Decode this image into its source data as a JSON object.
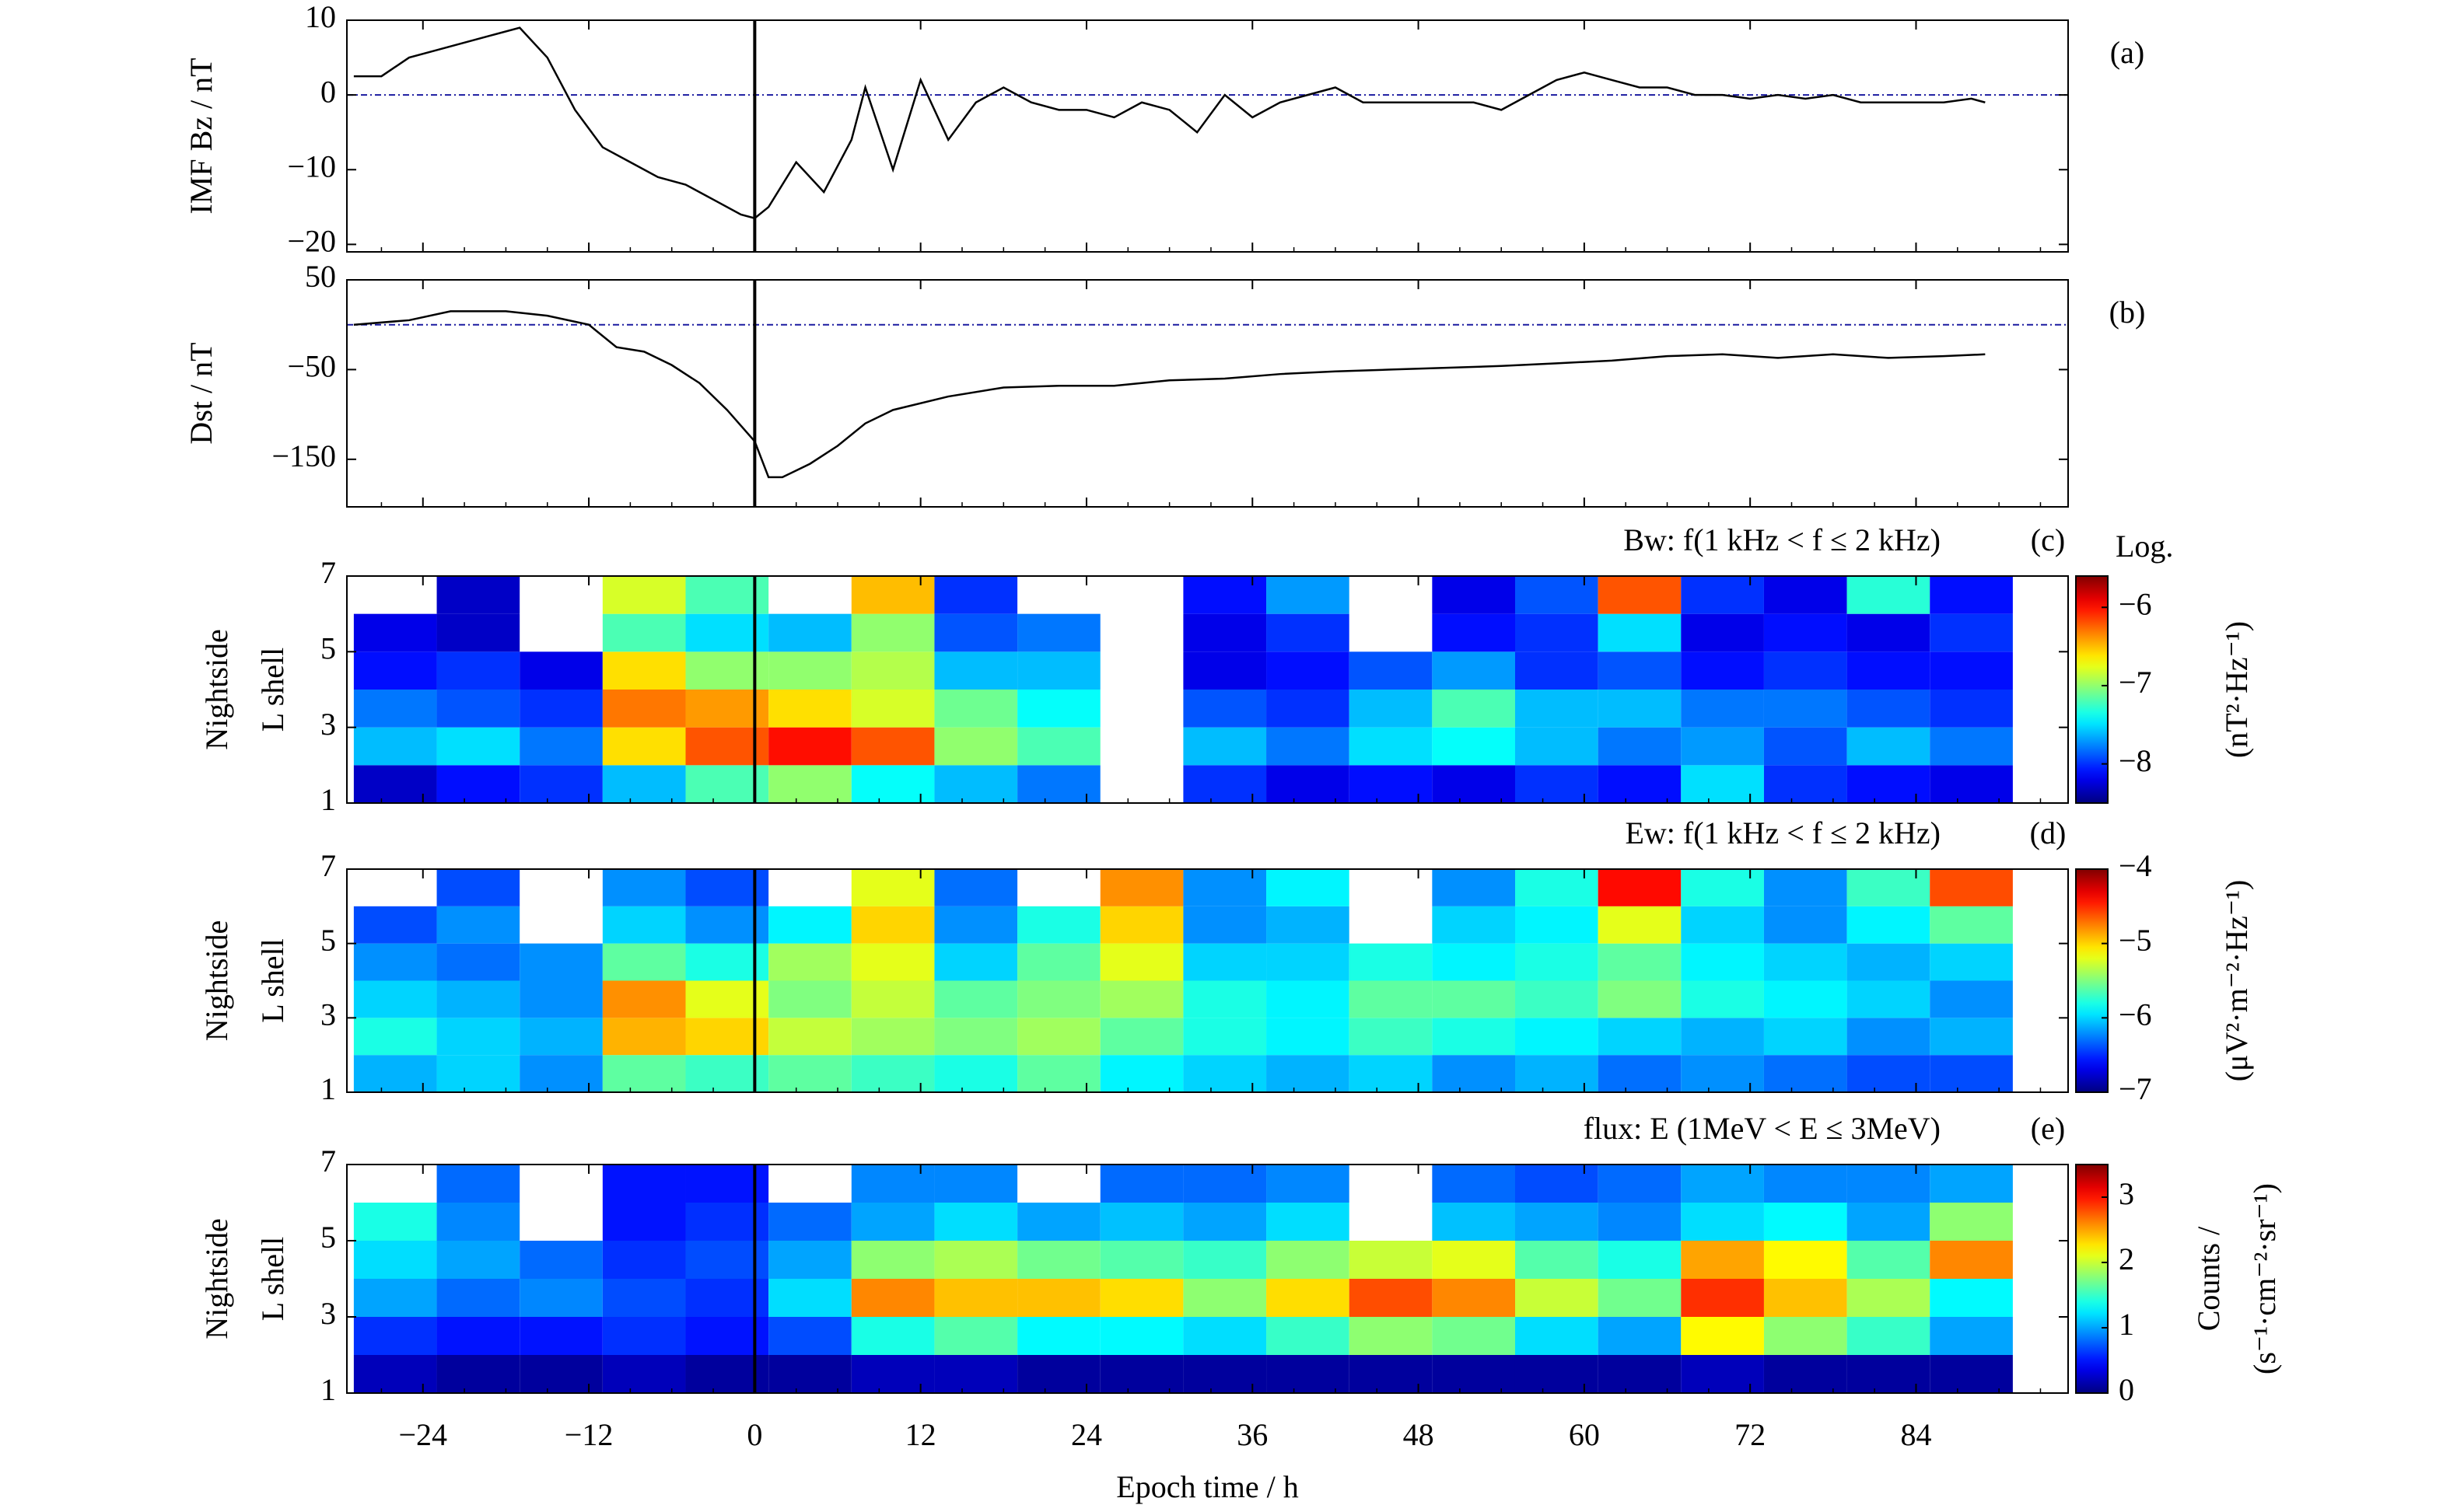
{
  "chart_data": [
    {
      "type": "line",
      "panel_label": "(a)",
      "ylabel": "IMF Bz / nT",
      "x": [
        -29,
        -27,
        -25,
        -23,
        -21,
        -19,
        -17,
        -15,
        -13,
        -11,
        -9,
        -7,
        -5,
        -3,
        -1,
        0,
        1,
        3,
        5,
        7,
        8,
        10,
        12,
        14,
        16,
        18,
        20,
        22,
        24,
        26,
        28,
        30,
        32,
        34,
        36,
        38,
        40,
        42,
        44,
        46,
        48,
        50,
        52,
        54,
        56,
        58,
        60,
        62,
        64,
        66,
        68,
        70,
        72,
        74,
        76,
        78,
        80,
        82,
        84,
        86,
        88,
        89
      ],
      "series": [
        {
          "color": "#000000",
          "values": [
            2.5,
            2.5,
            5,
            6,
            7,
            8,
            9,
            5,
            -2,
            -7,
            -9,
            -11,
            -12,
            -14,
            -16,
            -16.5,
            -15,
            -9,
            -13,
            -6,
            1,
            -10,
            2,
            -6,
            -1,
            1,
            -1,
            -2,
            -2,
            -3,
            -1,
            -2,
            -5,
            0,
            -3,
            -1,
            0,
            1,
            -1,
            -1,
            -1,
            -1,
            -1,
            -2,
            0,
            2,
            3,
            2,
            1,
            1,
            0,
            0,
            -0.5,
            0,
            -0.5,
            0,
            -1,
            -1,
            -1,
            -1,
            -0.5,
            -1
          ]
        }
      ],
      "hline": 0,
      "hline_color": "#1a1aa0",
      "vline": 0,
      "xlim": [
        -29.5,
        95
      ],
      "xticks": [
        -24,
        -12,
        0,
        12,
        24,
        36,
        48,
        60,
        72,
        84
      ],
      "ylim": [
        -21,
        10
      ],
      "yticks": [
        {
          "value": -20,
          "label": "−20"
        },
        {
          "value": -10,
          "label": "−10"
        },
        0,
        10
      ]
    },
    {
      "type": "line",
      "panel_label": "(b)",
      "ylabel": "Dst / nT",
      "x": [
        -29,
        -25,
        -22,
        -18,
        -15,
        -12,
        -10,
        -8,
        -6,
        -4,
        -2,
        0,
        1,
        2,
        4,
        6,
        8,
        10,
        14,
        18,
        22,
        26,
        30,
        34,
        38,
        42,
        46,
        50,
        54,
        58,
        62,
        66,
        70,
        74,
        78,
        82,
        86,
        89
      ],
      "series": [
        {
          "color": "#000000",
          "values": [
            0,
            5,
            15,
            15,
            10,
            0,
            -25,
            -30,
            -45,
            -65,
            -95,
            -130,
            -170,
            -170,
            -155,
            -135,
            -110,
            -95,
            -80,
            -70,
            -68,
            -68,
            -62,
            -60,
            -55,
            -52,
            -50,
            -48,
            -46,
            -43,
            -40,
            -35,
            -33,
            -37,
            -33,
            -37,
            -35,
            -33
          ]
        }
      ],
      "hline": 0,
      "hline_color": "#1a1aa0",
      "vline": 0,
      "xlim": [
        -29.5,
        95
      ],
      "xticks": [
        -24,
        -12,
        0,
        12,
        24,
        36,
        48,
        60,
        72,
        84
      ],
      "ylim": [
        -203,
        50
      ],
      "yticks": [
        {
          "value": -150,
          "label": "−150"
        },
        {
          "value": -50,
          "label": "−50"
        },
        50
      ]
    },
    {
      "type": "heatmap",
      "panel_label": "(c)",
      "title": "Bw: f(1 kHz < f ≤ 2 kHz)",
      "ylabel": [
        "Nightside",
        "L shell"
      ],
      "colorbar_title": "Log.",
      "colorbar_label": [
        "(nT²·Hz⁻¹)"
      ],
      "colormap": "jet",
      "vline": 0,
      "x": [
        -26,
        -20,
        -14,
        -8,
        -2,
        4,
        10,
        16,
        22,
        28,
        34,
        40,
        46,
        52,
        58,
        64,
        70,
        76,
        82,
        88
      ],
      "y": [
        1.5,
        2.5,
        3.5,
        4.5,
        5.5,
        6.5
      ],
      "z": [
        [
          -8.3,
          -8.1,
          -8.0,
          -7.6,
          -7.2,
          -7.0,
          -7.4,
          -7.6,
          -7.8,
          null,
          -8.0,
          -8.2,
          -8.1,
          -8.2,
          -8.0,
          -8.1,
          -7.5,
          -8.0,
          -8.1,
          -8.2
        ],
        [
          -7.6,
          -7.5,
          -7.8,
          -6.6,
          -6.2,
          -6.0,
          -6.2,
          -7.0,
          -7.2,
          null,
          -7.6,
          -7.8,
          -7.5,
          -7.4,
          -7.6,
          -7.8,
          -7.7,
          -7.9,
          -7.6,
          -7.8
        ],
        [
          -7.8,
          -7.9,
          -8.0,
          -6.3,
          -6.4,
          -6.6,
          -6.8,
          -7.1,
          -7.4,
          null,
          -7.9,
          -8.0,
          -7.6,
          -7.2,
          -7.6,
          -7.6,
          -7.8,
          -7.8,
          -7.9,
          -8.0
        ],
        [
          -8.1,
          -8.0,
          -8.2,
          -6.6,
          -7.0,
          -7.0,
          -6.9,
          -7.6,
          -7.6,
          null,
          -8.2,
          -8.1,
          -7.9,
          -7.7,
          -8.0,
          -7.9,
          -8.1,
          -8.0,
          -8.1,
          -8.1
        ],
        [
          -8.2,
          -8.3,
          null,
          -7.2,
          -7.5,
          -7.6,
          -7.0,
          -7.9,
          -7.8,
          null,
          -8.2,
          -8.0,
          null,
          -8.1,
          -8.0,
          -7.5,
          -8.2,
          -8.1,
          -8.2,
          -8.0
        ],
        [
          null,
          -8.3,
          null,
          -6.8,
          -7.2,
          null,
          -6.5,
          -8.0,
          null,
          null,
          -8.1,
          -7.7,
          null,
          -8.2,
          -7.9,
          -6.2,
          -8.0,
          -8.2,
          -7.3,
          -8.1
        ]
      ],
      "xlim": [
        -29.5,
        95
      ],
      "xticks": [
        -24,
        -12,
        0,
        12,
        24,
        36,
        48,
        60,
        72,
        84
      ],
      "ylim": [
        1,
        7
      ],
      "yticks": [
        1,
        3,
        5,
        7
      ],
      "clim": [
        -8.5,
        -5.6
      ],
      "cticks": [
        {
          "value": -8,
          "label": "−8"
        },
        {
          "value": -7,
          "label": "−7"
        },
        {
          "value": -6,
          "label": "−6"
        }
      ]
    },
    {
      "type": "heatmap",
      "panel_label": "(d)",
      "title": "Ew: f(1 kHz < f ≤ 2 kHz)",
      "ylabel": [
        "Nightside",
        "L shell"
      ],
      "colorbar_label": [
        "(μV²·m⁻²·Hz⁻¹)"
      ],
      "colormap": "jet",
      "vline": 0,
      "x": [
        -26,
        -20,
        -14,
        -8,
        -2,
        4,
        10,
        16,
        22,
        28,
        34,
        40,
        46,
        52,
        58,
        64,
        70,
        76,
        82,
        88
      ],
      "y": [
        1.5,
        2.5,
        3.5,
        4.5,
        5.5,
        6.5
      ],
      "z": [
        [
          -6.1,
          -6.0,
          -6.2,
          -5.6,
          -5.7,
          -5.6,
          -5.7,
          -5.8,
          -5.6,
          -5.9,
          -6.0,
          -6.1,
          -6.0,
          -6.2,
          -6.1,
          -6.3,
          -6.2,
          -6.3,
          -6.4,
          -6.4
        ],
        [
          -5.8,
          -6.0,
          -6.1,
          -4.9,
          -5.0,
          -5.3,
          -5.4,
          -5.5,
          -5.4,
          -5.6,
          -5.8,
          -5.9,
          -5.7,
          -5.8,
          -5.9,
          -6.0,
          -6.1,
          -6.0,
          -6.2,
          -6.1
        ],
        [
          -6.0,
          -6.1,
          -6.2,
          -4.8,
          -5.2,
          -5.5,
          -5.3,
          -5.6,
          -5.5,
          -5.4,
          -5.8,
          -5.9,
          -5.6,
          -5.6,
          -5.7,
          -5.5,
          -5.8,
          -5.9,
          -6.0,
          -6.2
        ],
        [
          -6.2,
          -6.3,
          -6.2,
          -5.6,
          -5.8,
          -5.4,
          -5.2,
          -6.0,
          -5.6,
          -5.2,
          -6.0,
          -6.0,
          -5.8,
          -5.9,
          -5.8,
          -5.6,
          -5.9,
          -6.0,
          -6.1,
          -6.0
        ],
        [
          -6.4,
          -6.2,
          null,
          -6.0,
          -6.2,
          -5.9,
          -5.0,
          -6.2,
          -5.8,
          -5.0,
          -6.2,
          -6.1,
          null,
          -6.0,
          -5.9,
          -5.2,
          -6.0,
          -6.2,
          -5.9,
          -5.6
        ],
        [
          null,
          -6.4,
          null,
          -6.2,
          -6.4,
          null,
          -5.2,
          -6.3,
          null,
          -4.8,
          -6.2,
          -5.9,
          null,
          -6.2,
          -5.8,
          -4.4,
          -5.8,
          -6.2,
          -5.7,
          -4.6
        ]
      ],
      "xlim": [
        -29.5,
        95
      ],
      "xticks": [
        -24,
        -12,
        0,
        12,
        24,
        36,
        48,
        60,
        72,
        84
      ],
      "ylim": [
        1,
        7
      ],
      "yticks": [
        1,
        3,
        5,
        7
      ],
      "clim": [
        -7,
        -4
      ],
      "cticks": [
        {
          "value": -7,
          "label": "−7"
        },
        {
          "value": -6,
          "label": "−6"
        },
        {
          "value": -5,
          "label": "−5"
        },
        {
          "value": -4,
          "label": "−4"
        }
      ]
    },
    {
      "type": "heatmap",
      "panel_label": "(e)",
      "title": "flux: E (1MeV < E ≤ 3MeV)",
      "ylabel": [
        "Nightside",
        "L shell"
      ],
      "colorbar_label": [
        "Counts /",
        "(s⁻¹·cm⁻²·sr⁻¹)"
      ],
      "colormap": "jet",
      "vline": 0,
      "x": [
        -26,
        -20,
        -14,
        -8,
        -2,
        4,
        10,
        16,
        22,
        28,
        34,
        40,
        46,
        52,
        58,
        64,
        70,
        76,
        82,
        88
      ],
      "y": [
        1.5,
        2.5,
        3.5,
        4.5,
        5.5,
        6.5
      ],
      "z": [
        [
          0.2,
          0.1,
          0.1,
          0.2,
          0.1,
          0.1,
          0.2,
          0.2,
          0.1,
          0.1,
          0.1,
          0.1,
          0.1,
          0.1,
          0.1,
          0.1,
          0.2,
          0.1,
          0.1,
          0.1
        ],
        [
          0.6,
          0.5,
          0.5,
          0.6,
          0.5,
          0.7,
          1.4,
          1.6,
          1.3,
          1.3,
          1.2,
          1.5,
          1.8,
          1.7,
          1.2,
          1.0,
          2.2,
          1.8,
          1.5,
          1.0
        ],
        [
          1.0,
          0.8,
          0.9,
          0.7,
          0.6,
          1.2,
          2.6,
          2.4,
          2.4,
          2.3,
          1.8,
          2.3,
          2.8,
          2.6,
          2.0,
          1.7,
          2.9,
          2.4,
          1.9,
          1.3
        ],
        [
          1.2,
          1.0,
          0.8,
          0.6,
          0.7,
          1.0,
          1.8,
          1.9,
          1.7,
          1.6,
          1.5,
          1.8,
          2.0,
          2.1,
          1.6,
          1.4,
          2.5,
          2.2,
          1.6,
          2.6
        ],
        [
          1.4,
          0.9,
          null,
          0.5,
          0.6,
          0.8,
          1.0,
          1.2,
          1.0,
          1.1,
          1.0,
          1.2,
          null,
          1.1,
          1.0,
          0.9,
          1.2,
          1.3,
          1.0,
          1.8
        ],
        [
          null,
          0.8,
          null,
          0.5,
          0.5,
          null,
          0.9,
          0.9,
          null,
          0.8,
          0.8,
          0.9,
          null,
          0.8,
          0.7,
          0.8,
          1.0,
          0.9,
          0.9,
          1.0
        ]
      ],
      "xlim": [
        -29.5,
        95
      ],
      "xlabel": "Epoch time / h",
      "xticks": [
        {
          "value": -24,
          "label": "−24"
        },
        {
          "value": -12,
          "label": "−12"
        },
        0,
        12,
        24,
        36,
        48,
        60,
        72,
        84
      ],
      "ylim": [
        1,
        7
      ],
      "yticks": [
        1,
        3,
        5,
        7
      ],
      "clim": [
        0,
        3.5
      ],
      "cticks": [
        0,
        1,
        2,
        3
      ]
    }
  ]
}
